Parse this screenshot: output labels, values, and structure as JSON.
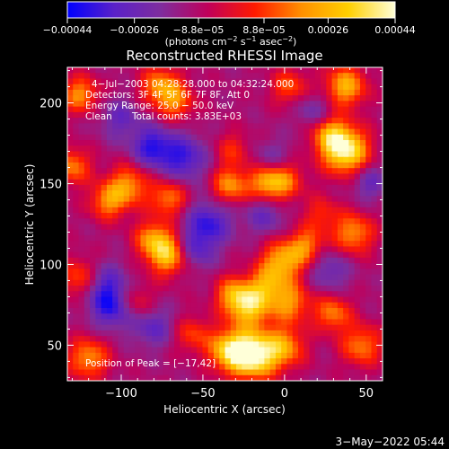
{
  "chart_data": {
    "type": "heatmap",
    "title": "Reconstructed RHESSI Image",
    "xlabel": "Heliocentric X (arcsec)",
    "ylabel": "Heliocentric Y (arcsec)",
    "xlim": [
      -133,
      60
    ],
    "ylim": [
      28,
      222
    ],
    "xticks": [
      -100,
      -50,
      0,
      50
    ],
    "xtick_labels": [
      "−100",
      "−50",
      "0",
      "50"
    ],
    "yticks": [
      50,
      100,
      150,
      200
    ],
    "ytick_labels": [
      "50",
      "100",
      "150",
      "200"
    ],
    "colorbar": {
      "range": [
        -0.00044,
        0.00044
      ],
      "ticks": [
        -0.00044,
        -0.00026,
        -8.8e-05,
        8.8e-05,
        0.00026,
        0.00044
      ],
      "tick_labels": [
        "−0.00044",
        "−0.00026",
        "−8.8e−05",
        "8.8e−05",
        "0.00026",
        "0.00044"
      ],
      "unit_parts": [
        "(photons cm",
        "−2",
        " s",
        "−1",
        " asec",
        "−2",
        ")"
      ],
      "colors": [
        "#0000ff",
        "#5a21c8",
        "#7f2d9d",
        "#c0005a",
        "#ff1a00",
        "#ff9000",
        "#ffd000",
        "#ffffd8"
      ]
    },
    "annotations": {
      "time_range": "4−Jul−2003 04:28:28.000 to 04:32:24.000",
      "detectors": "Detectors: 3F 4F 5F 6F 7F 8F, Att 0",
      "energy": "Energy Range: 25.0 − 50.0 keV",
      "method": "Clean",
      "counts": "Total counts: 3.83E+03",
      "peak": "Position of Peak = [−17,42]"
    },
    "peak_position": [
      -17,
      42
    ],
    "blobs": [
      {
        "x": -17,
        "y": 42,
        "v": 1.0,
        "s": 10
      },
      {
        "x": -32,
        "y": 45,
        "v": 0.75,
        "s": 9
      },
      {
        "x": 2,
        "y": 47,
        "v": 0.55,
        "s": 9
      },
      {
        "x": -120,
        "y": 40,
        "v": 0.55,
        "s": 9
      },
      {
        "x": 50,
        "y": 48,
        "v": 0.5,
        "s": 9
      },
      {
        "x": -55,
        "y": 55,
        "v": 0.35,
        "s": 8
      },
      {
        "x": -20,
        "y": 72,
        "v": 0.7,
        "s": 9
      },
      {
        "x": 5,
        "y": 75,
        "v": 0.55,
        "s": 9
      },
      {
        "x": -30,
        "y": 80,
        "v": 0.5,
        "s": 8
      },
      {
        "x": 32,
        "y": 68,
        "v": 0.5,
        "s": 8
      },
      {
        "x": -10,
        "y": 85,
        "v": 0.45,
        "s": 8
      },
      {
        "x": -125,
        "y": 90,
        "v": 0.45,
        "s": 9
      },
      {
        "x": -90,
        "y": 75,
        "v": 0.3,
        "s": 8
      },
      {
        "x": -70,
        "y": 105,
        "v": 0.75,
        "s": 9
      },
      {
        "x": -80,
        "y": 115,
        "v": 0.5,
        "s": 8
      },
      {
        "x": 0,
        "y": 100,
        "v": 0.65,
        "s": 9
      },
      {
        "x": 15,
        "y": 110,
        "v": 0.5,
        "s": 8
      },
      {
        "x": 45,
        "y": 118,
        "v": 0.55,
        "s": 9
      },
      {
        "x": -95,
        "y": 148,
        "v": 0.55,
        "s": 9
      },
      {
        "x": -108,
        "y": 138,
        "v": 0.5,
        "s": 8
      },
      {
        "x": -70,
        "y": 140,
        "v": 0.5,
        "s": 8
      },
      {
        "x": -32,
        "y": 148,
        "v": 0.55,
        "s": 8
      },
      {
        "x": -10,
        "y": 150,
        "v": 0.5,
        "s": 8
      },
      {
        "x": 0,
        "y": 152,
        "v": 0.6,
        "s": 9
      },
      {
        "x": 25,
        "y": 130,
        "v": 0.3,
        "s": 8
      },
      {
        "x": 40,
        "y": 170,
        "v": 0.95,
        "s": 10
      },
      {
        "x": 30,
        "y": 180,
        "v": 0.5,
        "s": 8
      },
      {
        "x": -30,
        "y": 170,
        "v": 0.3,
        "s": 8
      },
      {
        "x": -125,
        "y": 205,
        "v": 0.55,
        "s": 8
      },
      {
        "x": -75,
        "y": 210,
        "v": 0.55,
        "s": 9
      },
      {
        "x": -65,
        "y": 200,
        "v": 0.4,
        "s": 8
      },
      {
        "x": 40,
        "y": 210,
        "v": 0.65,
        "s": 9
      },
      {
        "x": 5,
        "y": 210,
        "v": 0.4,
        "s": 8
      },
      {
        "x": -130,
        "y": 160,
        "v": 0.5,
        "s": 8
      },
      {
        "x": -60,
        "y": 165,
        "v": -0.45,
        "s": 10
      },
      {
        "x": -80,
        "y": 172,
        "v": -0.5,
        "s": 9
      },
      {
        "x": -45,
        "y": 125,
        "v": -0.45,
        "s": 10
      },
      {
        "x": -55,
        "y": 108,
        "v": -0.4,
        "s": 9
      },
      {
        "x": -110,
        "y": 85,
        "v": -0.45,
        "s": 10
      },
      {
        "x": -105,
        "y": 70,
        "v": -0.4,
        "s": 9
      },
      {
        "x": -80,
        "y": 60,
        "v": -0.35,
        "s": 9
      },
      {
        "x": -5,
        "y": 162,
        "v": -0.35,
        "s": 9
      },
      {
        "x": -10,
        "y": 130,
        "v": -0.3,
        "s": 9
      },
      {
        "x": 30,
        "y": 95,
        "v": -0.3,
        "s": 9
      },
      {
        "x": -100,
        "y": 190,
        "v": -0.3,
        "s": 9
      },
      {
        "x": 20,
        "y": 195,
        "v": -0.25,
        "s": 8
      },
      {
        "x": 55,
        "y": 150,
        "v": -0.3,
        "s": 8
      }
    ]
  },
  "footer": {
    "date": "3−May−2022 05:44"
  }
}
